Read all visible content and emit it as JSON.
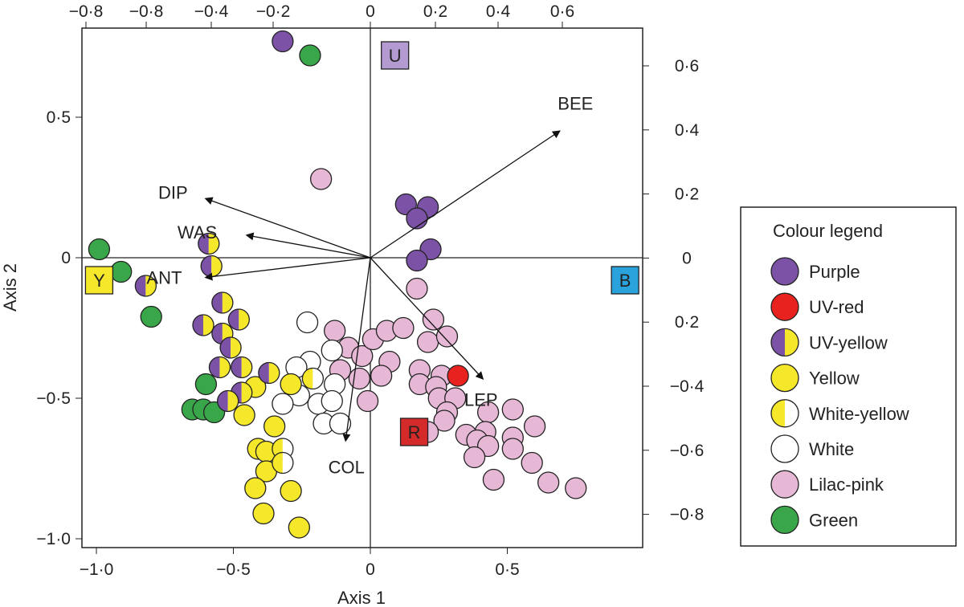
{
  "chart_data": {
    "type": "scatter",
    "title": "",
    "xlabel": "Axis 1",
    "ylabel": "Axis 2",
    "xlim": [
      -1.05,
      0.99
    ],
    "ylim": [
      -1.03,
      0.82
    ],
    "grid": false,
    "legend_placement": "right",
    "x_ticks": [
      "−1·0",
      "−0·5",
      "0",
      "0·5"
    ],
    "x_tick_values": [
      -1.0,
      -0.5,
      0,
      0.5
    ],
    "y_ticks": [
      "0·5",
      "0",
      "−0·5",
      "−1·0"
    ],
    "y_tick_values": [
      0.5,
      0,
      -0.5,
      -1.0
    ],
    "top_ticks": [
      "−0·8",
      "−0·8",
      "−0·4",
      "−0·2",
      "0",
      "0·2",
      "0·4",
      "0·6"
    ],
    "right_ticks": [
      "0·6",
      "0·4",
      "0·2",
      "0",
      "0·2",
      "−0·4",
      "−0·6",
      "−0·8"
    ],
    "legend_title": "Colour legend",
    "series": [
      {
        "name": "Purple",
        "fill": "#7b52a6",
        "points": [
          [
            -0.32,
            0.77
          ],
          [
            0.13,
            0.19
          ],
          [
            0.21,
            0.18
          ],
          [
            0.17,
            0.14
          ],
          [
            0.22,
            0.03
          ],
          [
            0.17,
            -0.01
          ]
        ]
      },
      {
        "name": "UV-red",
        "fill": "#e8231f",
        "points": [
          [
            0.32,
            -0.42
          ]
        ]
      },
      {
        "name": "UV-yellow",
        "fill": "#7b52a6",
        "fill2": "#f5e72a",
        "points": [
          [
            -0.59,
            0.05
          ],
          [
            -0.58,
            -0.03
          ],
          [
            -0.82,
            -0.1
          ],
          [
            -0.54,
            -0.16
          ],
          [
            -0.48,
            -0.22
          ],
          [
            -0.61,
            -0.24
          ],
          [
            -0.54,
            -0.27
          ],
          [
            -0.51,
            -0.32
          ],
          [
            -0.37,
            -0.41
          ],
          [
            -0.55,
            -0.39
          ],
          [
            -0.47,
            -0.39
          ],
          [
            -0.47,
            -0.48
          ],
          [
            -0.52,
            -0.51
          ]
        ]
      },
      {
        "name": "Yellow",
        "fill": "#f5e72a",
        "points": [
          [
            -0.42,
            -0.46
          ],
          [
            -0.46,
            -0.56
          ],
          [
            -0.29,
            -0.45
          ],
          [
            -0.35,
            -0.6
          ],
          [
            -0.41,
            -0.68
          ],
          [
            -0.38,
            -0.69
          ],
          [
            -0.38,
            -0.76
          ],
          [
            -0.42,
            -0.82
          ],
          [
            -0.29,
            -0.83
          ],
          [
            -0.39,
            -0.91
          ],
          [
            -0.26,
            -0.96
          ]
        ]
      },
      {
        "name": "White-yellow",
        "fill": "#f5e72a",
        "fill2": "#ffffff",
        "points": [
          [
            -0.21,
            -0.43
          ],
          [
            -0.32,
            -0.68
          ],
          [
            -0.32,
            -0.73
          ]
        ]
      },
      {
        "name": "White",
        "fill": "#ffffff",
        "points": [
          [
            -0.23,
            -0.23
          ],
          [
            -0.14,
            -0.33
          ],
          [
            -0.22,
            -0.37
          ],
          [
            -0.27,
            -0.39
          ],
          [
            -0.13,
            -0.45
          ],
          [
            -0.26,
            -0.49
          ],
          [
            -0.32,
            -0.52
          ],
          [
            -0.19,
            -0.52
          ],
          [
            -0.14,
            -0.51
          ],
          [
            -0.17,
            -0.59
          ],
          [
            -0.11,
            -0.59
          ]
        ]
      },
      {
        "name": "Lilac-pink",
        "fill": "#e6b8d6",
        "points": [
          [
            -0.18,
            0.28
          ],
          [
            0.17,
            -0.11
          ],
          [
            0.23,
            -0.22
          ],
          [
            0.21,
            -0.3
          ],
          [
            0.28,
            -0.28
          ],
          [
            -0.13,
            -0.26
          ],
          [
            -0.08,
            -0.32
          ],
          [
            -0.03,
            -0.35
          ],
          [
            0.01,
            -0.29
          ],
          [
            0.06,
            -0.26
          ],
          [
            0.12,
            -0.25
          ],
          [
            0.07,
            -0.37
          ],
          [
            0.04,
            -0.42
          ],
          [
            -0.04,
            -0.43
          ],
          [
            -0.11,
            -0.4
          ],
          [
            -0.01,
            -0.51
          ],
          [
            0.18,
            -0.4
          ],
          [
            0.18,
            -0.45
          ],
          [
            0.26,
            -0.42
          ],
          [
            0.24,
            -0.46
          ],
          [
            0.25,
            -0.5
          ],
          [
            0.31,
            -0.5
          ],
          [
            0.28,
            -0.55
          ],
          [
            0.27,
            -0.58
          ],
          [
            0.21,
            -0.62
          ],
          [
            0.35,
            -0.63
          ],
          [
            0.43,
            -0.55
          ],
          [
            0.42,
            -0.62
          ],
          [
            0.39,
            -0.65
          ],
          [
            0.43,
            -0.67
          ],
          [
            0.38,
            -0.71
          ],
          [
            0.52,
            -0.54
          ],
          [
            0.52,
            -0.64
          ],
          [
            0.52,
            -0.68
          ],
          [
            0.6,
            -0.6
          ],
          [
            0.59,
            -0.73
          ],
          [
            0.45,
            -0.79
          ],
          [
            0.65,
            -0.8
          ],
          [
            0.75,
            -0.82
          ]
        ]
      },
      {
        "name": "Green",
        "fill": "#3aa64a",
        "points": [
          [
            -0.22,
            0.72
          ],
          [
            -0.99,
            0.03
          ],
          [
            -0.91,
            -0.05
          ],
          [
            -0.8,
            -0.21
          ],
          [
            -0.6,
            -0.45
          ],
          [
            -0.65,
            -0.54
          ],
          [
            -0.61,
            -0.54
          ],
          [
            -0.57,
            -0.55
          ]
        ]
      }
    ],
    "vectors": [
      {
        "label": "BEE",
        "end": [
          0.69,
          0.45
        ]
      },
      {
        "label": "DIP",
        "end": [
          -0.6,
          0.21
        ]
      },
      {
        "label": "WAS",
        "end": [
          -0.45,
          0.08
        ]
      },
      {
        "label": "ANT",
        "end": [
          -0.6,
          -0.07
        ]
      },
      {
        "label": "COL",
        "end": [
          -0.09,
          -0.65
        ]
      },
      {
        "label": "LEP",
        "end": [
          0.41,
          -0.43
        ]
      }
    ],
    "markers": [
      {
        "label": "U",
        "pos": [
          0.09,
          0.72
        ],
        "fill": "#b39bd1"
      },
      {
        "label": "B",
        "pos": [
          0.93,
          -0.08
        ],
        "fill": "#2aa3dc"
      },
      {
        "label": "Y",
        "pos": [
          -0.99,
          -0.08
        ],
        "fill": "#f5e72a"
      },
      {
        "label": "R",
        "pos": [
          0.16,
          -0.62
        ],
        "fill": "#d42a2a"
      }
    ]
  }
}
